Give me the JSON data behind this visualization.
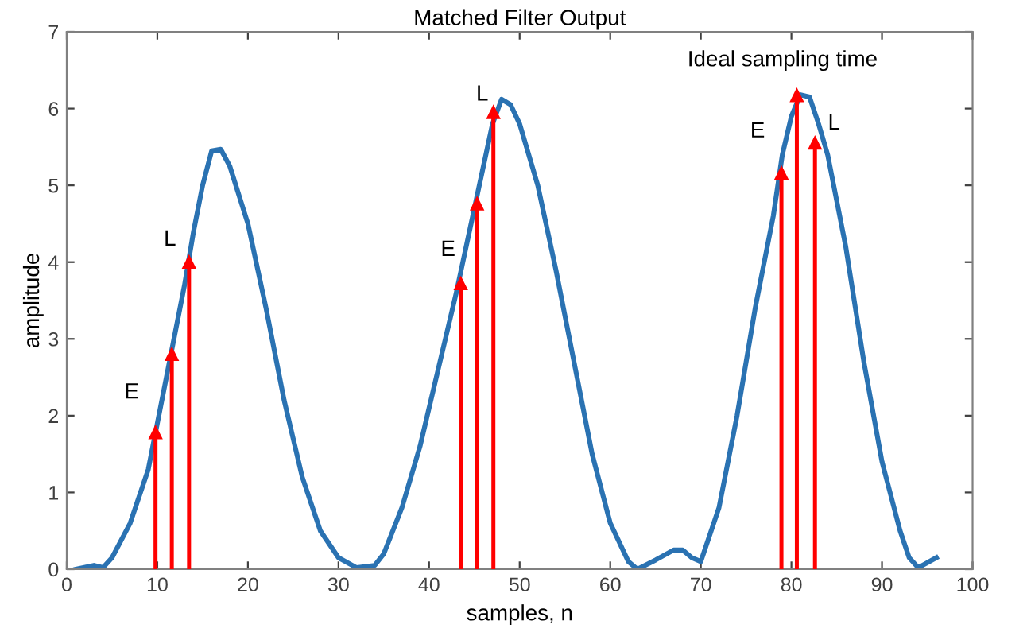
{
  "chart_data": {
    "type": "line",
    "title": "Matched Filter Output",
    "xlabel": "samples, n",
    "ylabel": "amplitude",
    "series": [
      {
        "color": "#2a72b2",
        "marker": "none",
        "line_style": "solid",
        "x": [
          1,
          3,
          4,
          5,
          7,
          9,
          11,
          13,
          14,
          15,
          16,
          17,
          18,
          20,
          22,
          24,
          26,
          28,
          30,
          32,
          34,
          35,
          37,
          39,
          41,
          43,
          45,
          47,
          48,
          49,
          50,
          52,
          54,
          56,
          58,
          60,
          62,
          63,
          65,
          67,
          68,
          69,
          70,
          72,
          74,
          76,
          78,
          79,
          80,
          81,
          82,
          83,
          84,
          86,
          88,
          90,
          92,
          93,
          94,
          96
        ],
        "values": [
          0,
          0.05,
          0.02,
          0.15,
          0.6,
          1.3,
          2.5,
          3.7,
          4.4,
          5.0,
          5.45,
          5.47,
          5.25,
          4.5,
          3.4,
          2.2,
          1.2,
          0.5,
          0.15,
          0.02,
          0.05,
          0.2,
          0.8,
          1.6,
          2.6,
          3.6,
          4.7,
          5.8,
          6.12,
          6.05,
          5.8,
          5.0,
          3.9,
          2.7,
          1.5,
          0.6,
          0.1,
          0.0,
          0.12,
          0.25,
          0.25,
          0.15,
          0.1,
          0.8,
          2.0,
          3.4,
          4.6,
          5.4,
          5.9,
          6.18,
          6.15,
          5.8,
          5.4,
          4.2,
          2.7,
          1.4,
          0.5,
          0.15,
          0.02,
          0.15
        ]
      },
      {
        "type": "lollipop",
        "color": "#ff0000",
        "marker": "triangle",
        "x": [
          9.8,
          11.6,
          13.5,
          43.5,
          45.3,
          47.1,
          78.9,
          80.6,
          82.6
        ],
        "values": [
          1.78,
          2.8,
          4.0,
          3.72,
          4.76,
          5.95,
          5.16,
          6.17,
          5.55
        ]
      }
    ],
    "annotations": [
      {
        "text": "E",
        "x": 9.8,
        "y": 1.78
      },
      {
        "text": "L",
        "x": 13.5,
        "y": 4.0
      },
      {
        "text": "E",
        "x": 43.5,
        "y": 3.72
      },
      {
        "text": "L",
        "x": 47.1,
        "y": 5.95
      },
      {
        "text": "E",
        "x": 78.9,
        "y": 5.16
      },
      {
        "text": "L",
        "x": 82.6,
        "y": 5.55
      },
      {
        "text": "Ideal sampling time",
        "x": 80.6,
        "y": 6.17
      }
    ],
    "xlim": [
      0,
      100
    ],
    "xticks": [
      0,
      10,
      20,
      30,
      40,
      50,
      60,
      70,
      80,
      90,
      100
    ],
    "ylim": [
      0,
      7
    ],
    "yticks": [
      0,
      1,
      2,
      3,
      4,
      5,
      6,
      7
    ],
    "grid": false,
    "legend": false
  }
}
